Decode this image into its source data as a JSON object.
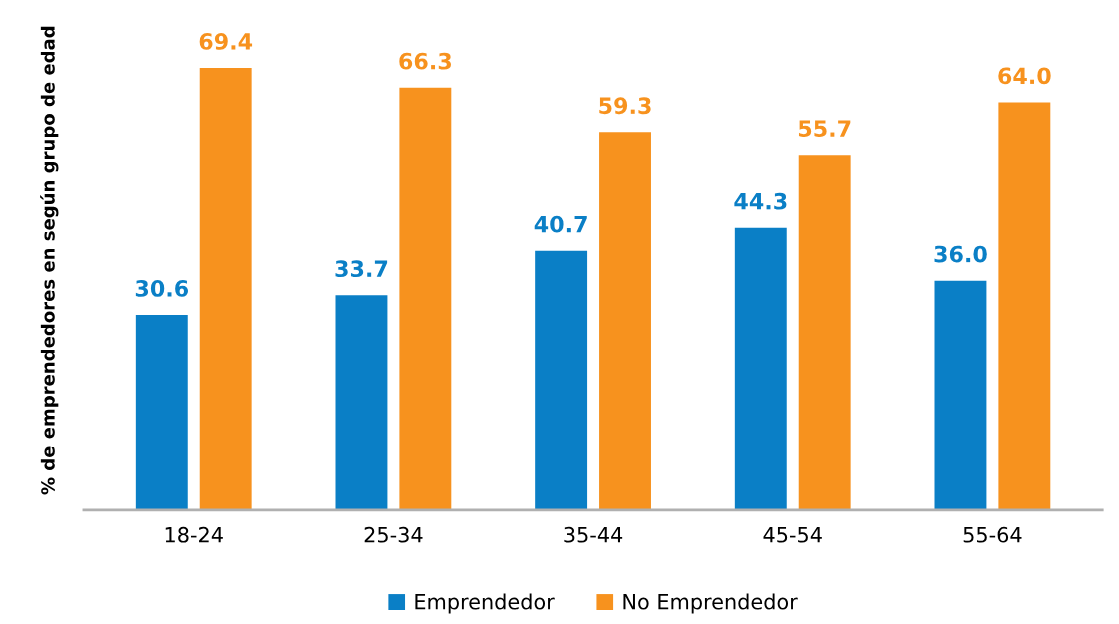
{
  "chart_data": {
    "type": "bar",
    "ylabel": "% de emprendedores en según grupo de edad",
    "categories": [
      "18-24",
      "25-34",
      "35-44",
      "45-54",
      "55-64"
    ],
    "series": [
      {
        "name": "Emprendedor",
        "color": "#0a7fc6",
        "values": [
          30.6,
          33.7,
          40.7,
          44.3,
          36.0
        ],
        "value_labels": [
          "30.6",
          "33.7",
          "40.7",
          "44.3",
          "36.0"
        ]
      },
      {
        "name": "No Emprendedor",
        "color": "#f7921e",
        "values": [
          69.4,
          66.3,
          59.3,
          55.7,
          64.0
        ],
        "value_labels": [
          "69.4",
          "66.3",
          "59.3",
          "55.7",
          "64.0"
        ]
      }
    ],
    "legend": "bottom",
    "grid": false,
    "tick_labels": "x"
  }
}
